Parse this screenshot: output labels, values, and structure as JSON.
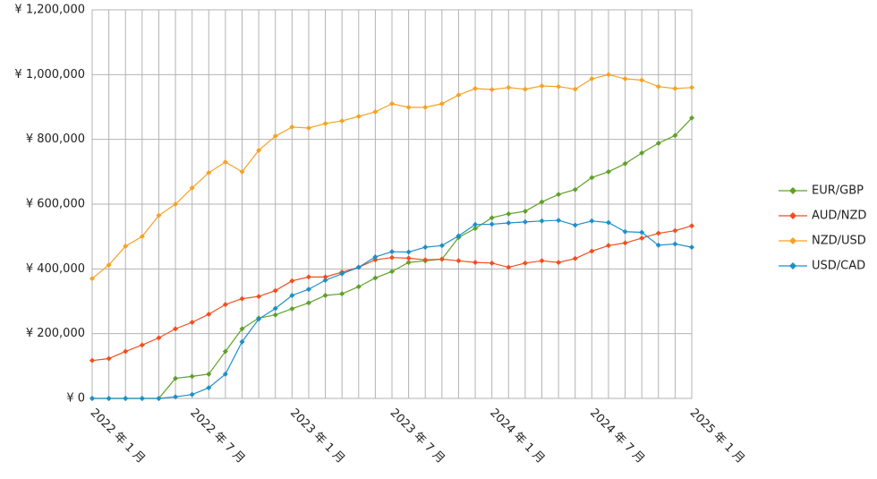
{
  "chart_data": {
    "type": "line",
    "categories": [
      "2022 年 1 月",
      null,
      null,
      null,
      null,
      null,
      "2022 年 7 月",
      null,
      null,
      null,
      null,
      null,
      "2023 年 1 月",
      null,
      null,
      null,
      null,
      null,
      "2023 年 7 月",
      null,
      null,
      null,
      null,
      null,
      "2024 年 1 月",
      null,
      null,
      null,
      null,
      null,
      "2024 年 7 月",
      null,
      null,
      null,
      null,
      null,
      "2025 年 1 月"
    ],
    "series": [
      {
        "name": "EUR/GBP",
        "color": "#5ea127",
        "values": [
          0,
          0,
          0,
          0,
          0,
          62000,
          68000,
          75000,
          145000,
          215000,
          248000,
          258000,
          277000,
          295000,
          318000,
          323000,
          345000,
          372000,
          392000,
          420000,
          425000,
          430000,
          497000,
          525000,
          558000,
          570000,
          578000,
          607000,
          630000,
          645000,
          682000,
          700000,
          725000,
          758000,
          788000,
          812000,
          866000
        ]
      },
      {
        "name": "AUD/NZD",
        "color": "#f24e1e",
        "values": [
          117000,
          123000,
          145000,
          165000,
          187000,
          215000,
          235000,
          260000,
          290000,
          308000,
          315000,
          333000,
          363000,
          375000,
          375000,
          390000,
          405000,
          428000,
          435000,
          433000,
          428000,
          430000,
          425000,
          420000,
          418000,
          405000,
          418000,
          425000,
          420000,
          432000,
          455000,
          472000,
          480000,
          495000,
          510000,
          518000,
          533000
        ]
      },
      {
        "name": "NZD/USD",
        "color": "#f7a123",
        "values": [
          370000,
          412000,
          470000,
          500000,
          565000,
          600000,
          650000,
          697000,
          730000,
          700000,
          766000,
          810000,
          838000,
          835000,
          849000,
          857000,
          871000,
          885000,
          910000,
          899000,
          899000,
          910000,
          937000,
          957000,
          954000,
          960000,
          955000,
          965000,
          963000,
          955000,
          987000,
          1000000,
          987000,
          983000,
          963000,
          957000,
          960000
        ]
      },
      {
        "name": "USD/CAD",
        "color": "#1d8fc9",
        "values": [
          0,
          0,
          0,
          0,
          0,
          5000,
          12000,
          33000,
          75000,
          175000,
          245000,
          278000,
          318000,
          337000,
          365000,
          385000,
          405000,
          437000,
          453000,
          452000,
          467000,
          472000,
          502000,
          537000,
          538000,
          542000,
          545000,
          548000,
          550000,
          535000,
          548000,
          543000,
          515000,
          513000,
          473000,
          477000,
          467000
        ]
      }
    ],
    "ylim": [
      0,
      1200000
    ],
    "yticks": [
      {
        "value": 0,
        "label": "¥ 0"
      },
      {
        "value": 200000,
        "label": "¥ 200,000"
      },
      {
        "value": 400000,
        "label": "¥ 400,000"
      },
      {
        "value": 600000,
        "label": "¥ 600,000"
      },
      {
        "value": 800000,
        "label": "¥ 800,000"
      },
      {
        "value": 1000000,
        "label": "¥ 1,000,000"
      },
      {
        "value": 1200000,
        "label": "¥ 1,200,000"
      }
    ],
    "grid": true,
    "legend": "right"
  }
}
